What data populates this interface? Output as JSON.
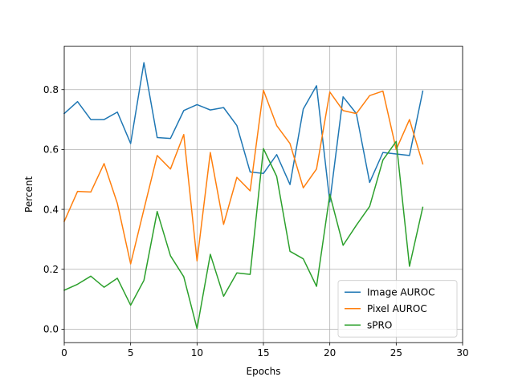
{
  "chart_data": {
    "type": "line",
    "title": "",
    "xlabel": "Epochs",
    "ylabel": "Percent",
    "xlim": [
      0,
      30
    ],
    "ylim": [
      -0.045,
      0.945
    ],
    "xticks": [
      0,
      5,
      10,
      15,
      20,
      25,
      30
    ],
    "yticks": [
      0.0,
      0.2,
      0.4,
      0.6,
      0.8
    ],
    "ytick_labels": [
      "0.0",
      "0.2",
      "0.4",
      "0.6",
      "0.8"
    ],
    "grid": true,
    "legend_position": "lower-right",
    "x": [
      0,
      1,
      2,
      3,
      4,
      5,
      6,
      7,
      8,
      9,
      10,
      11,
      12,
      13,
      14,
      15,
      16,
      17,
      18,
      19,
      20,
      21,
      22,
      23,
      24,
      25,
      26,
      27
    ],
    "series": [
      {
        "name": "Image AUROC",
        "color": "#1f77b4",
        "values": [
          0.72,
          0.76,
          0.7,
          0.7,
          0.725,
          0.62,
          0.89,
          0.64,
          0.637,
          0.73,
          0.75,
          0.732,
          0.74,
          0.68,
          0.525,
          0.52,
          0.583,
          0.483,
          0.735,
          0.813,
          0.425,
          0.776,
          0.72,
          0.49,
          0.59,
          0.585,
          0.58,
          0.795
        ]
      },
      {
        "name": "Pixel AUROC",
        "color": "#ff7f0e",
        "values": [
          0.36,
          0.46,
          0.458,
          0.553,
          0.42,
          0.218,
          0.4,
          0.58,
          0.535,
          0.65,
          0.228,
          0.59,
          0.35,
          0.507,
          0.462,
          0.798,
          0.68,
          0.62,
          0.472,
          0.535,
          0.792,
          0.73,
          0.72,
          0.78,
          0.795,
          0.6,
          0.7,
          0.552
        ]
      },
      {
        "name": "sPRO",
        "color": "#2ca02c",
        "values": [
          0.13,
          0.15,
          0.177,
          0.14,
          0.17,
          0.08,
          0.163,
          0.393,
          0.245,
          0.175,
          0.002,
          0.25,
          0.11,
          0.188,
          0.183,
          0.603,
          0.51,
          0.26,
          0.235,
          0.143,
          0.45,
          0.28,
          0.347,
          0.41,
          0.565,
          0.627,
          0.21,
          0.407
        ]
      }
    ]
  }
}
